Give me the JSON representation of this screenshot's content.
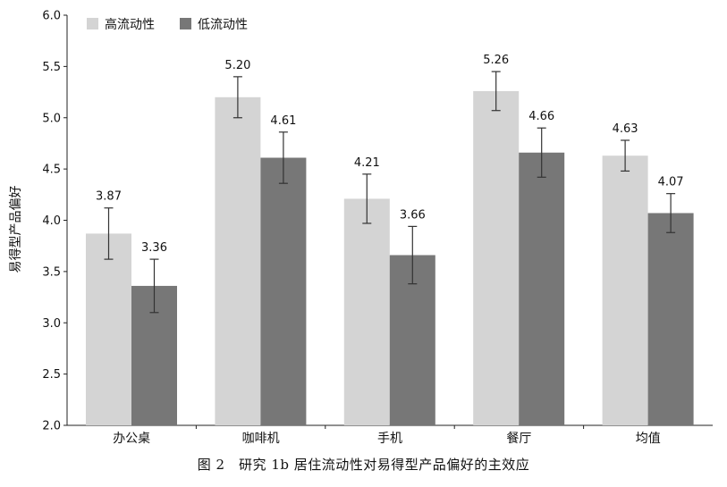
{
  "chart_data": {
    "type": "bar",
    "categories": [
      "办公桌",
      "咖啡机",
      "手机",
      "餐厅",
      "均值"
    ],
    "series": [
      {
        "name": "高流动性",
        "color": "#d4d4d4",
        "values": [
          3.87,
          5.2,
          4.21,
          5.26,
          4.63
        ],
        "error": [
          0.25,
          0.2,
          0.24,
          0.19,
          0.15
        ]
      },
      {
        "name": "低流动性",
        "color": "#777777",
        "values": [
          3.36,
          4.61,
          3.66,
          4.66,
          4.07
        ],
        "error": [
          0.26,
          0.25,
          0.28,
          0.24,
          0.19
        ]
      }
    ],
    "data_labels": [
      [
        "3.87",
        "5.20",
        "4.21",
        "5.26",
        "4.63"
      ],
      [
        "3.36",
        "4.61",
        "3.66",
        "4.66",
        "4.07"
      ]
    ],
    "yticks": [
      "2.0",
      "2.5",
      "3.0",
      "3.5",
      "4.0",
      "4.5",
      "5.0",
      "5.5",
      "6.0"
    ],
    "ylim": [
      2.0,
      6.0
    ],
    "ylabel": "易得型产品偏好",
    "xlabel": "",
    "legend": "top-left",
    "grid": false,
    "error_bar_color": "#333333"
  },
  "caption": "图 2　研究 1b 居住流动性对易得型产品偏好的主效应"
}
